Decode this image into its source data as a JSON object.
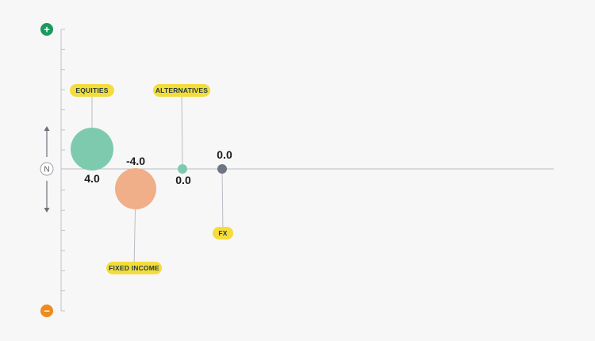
{
  "chart_data": {
    "type": "scatter",
    "title": "",
    "xlabel": "",
    "ylabel": "",
    "ylim": [
      -7,
      7
    ],
    "legend": "none",
    "grid": false,
    "axis": {
      "top_symbol": "+",
      "bottom_symbol": "−",
      "center_label": "N",
      "top_color": "#1a9a5e",
      "bottom_color": "#f08a1c",
      "axis_color": "#bfc3c9"
    },
    "series": [
      {
        "label": "EQUITIES",
        "value": 4.0,
        "value_label": "4.0",
        "color": "#7ecaae",
        "label_position": "above",
        "value_position": "below",
        "size": "large"
      },
      {
        "label": "FIXED INCOME",
        "value": -4.0,
        "value_label": "-4.0",
        "color": "#f0af88",
        "label_position": "below",
        "value_position": "above",
        "size": "large"
      },
      {
        "label": "ALTERNATIVES",
        "value": 0.0,
        "value_label": "0.0",
        "color": "#7ecaae",
        "label_position": "above",
        "value_position": "below",
        "size": "small"
      },
      {
        "label": "FX",
        "value": 0.0,
        "value_label": "0.0",
        "color": "#6e7681",
        "label_position": "below",
        "value_position": "above",
        "size": "small"
      }
    ],
    "tag_color": "#f4dc3c"
  }
}
